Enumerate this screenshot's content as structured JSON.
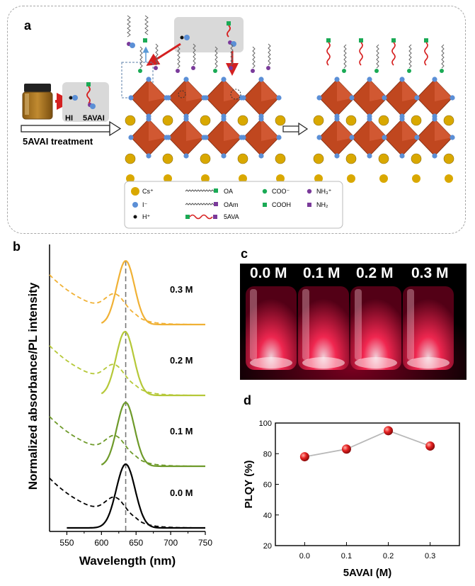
{
  "panel_labels": {
    "a": "a",
    "b": "b",
    "c": "c",
    "d": "d"
  },
  "panel_a": {
    "reagents": {
      "hi": "HI",
      "5avai": "5AVAI"
    },
    "treatment_label": "5AVAI treatment",
    "legend": {
      "cs": "Cs⁺",
      "iodide": "I⁻",
      "proton": "H⁺",
      "oa": "OA",
      "oam": "OAm",
      "5ava": "5AVA",
      "coo": "COO⁻",
      "cooh": "COOH",
      "nh3": "NH₃⁺",
      "nh2": "NH₂"
    },
    "colors": {
      "octahedron": "#c0471f",
      "cs": "#d9a800",
      "iodide": "#5b8fd6",
      "green_ligand": "#1aaa55",
      "purple_ligand": "#7a3a9a",
      "red_chain": "#d62020",
      "arrow": "#d42020",
      "vial_liquid": "#b07a22"
    }
  },
  "panel_c": {
    "labels": [
      "0.0 M",
      "0.1 M",
      "0.2 M",
      "0.3 M"
    ],
    "glow_color": "#ff2a55"
  },
  "chart_data": [
    {
      "type": "line",
      "panel": "b",
      "xlabel": "Wavelength (nm)",
      "ylabel": "Normalized absorbance/PL intensity",
      "xlim": [
        525,
        750
      ],
      "xticks": [
        "550",
        "600",
        "650",
        "700",
        "750"
      ],
      "reference_line_nm": 635,
      "series": [
        {
          "name": "0.3 M",
          "color": "#f0b135",
          "pl_peak_nm": 635,
          "pl_fwhm_nm": 30,
          "abs_exciton_nm": 620
        },
        {
          "name": "0.2 M",
          "color": "#b5c838",
          "pl_peak_nm": 634,
          "pl_fwhm_nm": 30,
          "abs_exciton_nm": 619
        },
        {
          "name": "0.1 M",
          "color": "#6e9a2a",
          "pl_peak_nm": 635,
          "pl_fwhm_nm": 30,
          "abs_exciton_nm": 620
        },
        {
          "name": "0.0 M",
          "color": "#000000",
          "pl_peak_nm": 635,
          "pl_fwhm_nm": 32,
          "abs_exciton_nm": 620
        }
      ]
    },
    {
      "type": "line",
      "panel": "d",
      "xlabel": "5AVAI (M)",
      "ylabel": "PLQY (%)",
      "categories": [
        "0.0",
        "0.1",
        "0.2",
        "0.3"
      ],
      "x": [
        0.0,
        0.1,
        0.2,
        0.3
      ],
      "values": [
        78,
        83,
        95,
        85
      ],
      "ylim": [
        20,
        100
      ],
      "yticks": [
        "20",
        "40",
        "60",
        "80",
        "100"
      ],
      "xlim": [
        -0.07,
        0.37
      ],
      "marker_color": "#e52020",
      "line_color": "#b8b8b8"
    }
  ]
}
